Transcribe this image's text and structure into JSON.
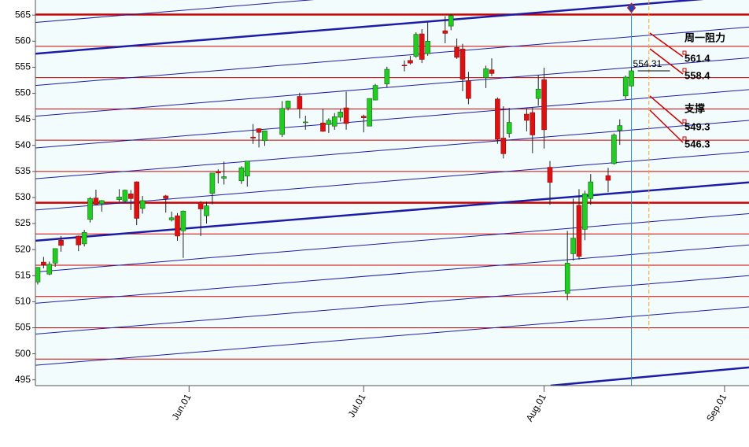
{
  "chart_data": {
    "type": "candlestick",
    "x": [
      0,
      1,
      2,
      3,
      4,
      7,
      8,
      9,
      10,
      11,
      14,
      15,
      16,
      17,
      18,
      22,
      23,
      24,
      25,
      28,
      29,
      30,
      31,
      32,
      35,
      36,
      37,
      38,
      39,
      42,
      43,
      45,
      46,
      49,
      50,
      51,
      52,
      53,
      56,
      57,
      58,
      60,
      63,
      64,
      65,
      66,
      67,
      70,
      71,
      72,
      73,
      74,
      77,
      78,
      79,
      80,
      81,
      84,
      85,
      86,
      87,
      88,
      91,
      92,
      93,
      94,
      95,
      98,
      99,
      100,
      101,
      102
    ],
    "open": [
      513.8,
      517.6,
      515.3,
      517.4,
      521.8,
      522.6,
      521.1,
      525.8,
      529.9,
      528.8,
      529.6,
      529.3,
      530.7,
      533.0,
      527.9,
      530.3,
      525.7,
      526.5,
      523.6,
      529.0,
      526.5,
      530.8,
      535.0,
      533.7,
      533.2,
      534.1,
      541.6,
      543.2,
      540.9,
      542.1,
      547.2,
      549.4,
      544.4,
      544.3,
      544.0,
      543.7,
      545.4,
      547.2,
      545.6,
      543.7,
      548.7,
      551.8,
      555.4,
      556.3,
      557.1,
      561.4,
      557.6,
      562.0,
      562.9,
      558.8,
      558.5,
      552.4,
      553.0,
      554.5,
      548.9,
      541.4,
      542.3,
      546.0,
      546.3,
      549.0,
      552.6,
      535.8,
      511.6,
      519.2,
      528.5,
      523.9,
      529.8,
      534.2,
      536.5,
      542.9,
      549.5,
      551.4
    ],
    "high": [
      516.6,
      518.6,
      517.7,
      520.2,
      522.6,
      522.7,
      523.8,
      530.1,
      531.5,
      529.5,
      531.6,
      531.5,
      531.4,
      533.1,
      530.3,
      530.5,
      527.3,
      527.0,
      527.5,
      529.3,
      529.2,
      534.7,
      535.4,
      536.9,
      536.0,
      537.0,
      544.1,
      543.3,
      542.8,
      548.5,
      548.6,
      550.1,
      545.7,
      547.0,
      545.2,
      546.2,
      547.0,
      550.3,
      545.9,
      549.0,
      551.8,
      555.1,
      556.3,
      557.2,
      561.7,
      562.3,
      563.7,
      564.8,
      565.2,
      560.5,
      559.5,
      554.1,
      555.3,
      556.7,
      549.2,
      547.5,
      547.2,
      547.1,
      547.3,
      553.5,
      554.9,
      537.0,
      523.6,
      529.8,
      531.6,
      531.3,
      534.5,
      535.7,
      542.3,
      545.0,
      553.4,
      555.0
    ],
    "low": [
      513.3,
      516.4,
      515.1,
      516.7,
      519.6,
      519.7,
      520.6,
      525.2,
      528.5,
      527.3,
      529.2,
      529.1,
      527.6,
      524.7,
      526.9,
      527.1,
      525.4,
      521.7,
      518.4,
      522.6,
      525.0,
      528.7,
      532.7,
      532.5,
      532.6,
      532.1,
      540.3,
      539.6,
      539.9,
      541.6,
      546.7,
      545.2,
      543.0,
      542.6,
      542.4,
      543.0,
      544.6,
      543.0,
      542.5,
      543.7,
      548.7,
      551.1,
      554.2,
      555.5,
      556.8,
      555.8,
      557.2,
      559.6,
      562.1,
      556.6,
      550.4,
      547.9,
      551.0,
      553.3,
      540.3,
      537.5,
      541.5,
      542.7,
      538.5,
      547.6,
      539.4,
      528.6,
      510.3,
      517.9,
      518.1,
      521.8,
      528.6,
      531.0,
      536.3,
      540.1,
      548.9,
      551.3
    ],
    "close": [
      516.6,
      517.1,
      517.2,
      520.2,
      520.8,
      520.9,
      523.3,
      529.8,
      528.7,
      529.4,
      530.1,
      531.4,
      529.8,
      526.0,
      529.4,
      529.8,
      526.1,
      522.6,
      527.4,
      527.8,
      528.4,
      534.7,
      534.7,
      534.0,
      535.7,
      537.0,
      541.4,
      542.5,
      542.8,
      547.1,
      548.5,
      547.0,
      544.5,
      542.7,
      544.8,
      545.5,
      546.4,
      544.2,
      545.3,
      549.0,
      551.5,
      554.6,
      555.3,
      555.8,
      561.3,
      556.5,
      560.0,
      561.5,
      564.9,
      556.9,
      552.7,
      549.0,
      554.7,
      553.8,
      541.2,
      538.4,
      544.4,
      544.8,
      542.0,
      550.8,
      543.0,
      532.9,
      517.4,
      522.2,
      518.7,
      530.7,
      533.0,
      533.3,
      542.0,
      543.8,
      553.1,
      554.31
    ],
    "up_color": "#22cc22",
    "down_color": "#dd1111",
    "xlim": [
      -0.4,
      122.2
    ],
    "xticks": [
      {
        "value": 26,
        "label": "Jun.01"
      },
      {
        "value": 56,
        "label": "Jul.01"
      },
      {
        "value": 87,
        "label": "Aug.01"
      },
      {
        "value": 118,
        "label": "Sep.01"
      }
    ],
    "ylim": [
      493.9,
      567.9
    ],
    "yticks": [
      495,
      500,
      505,
      510,
      515,
      520,
      525,
      530,
      535,
      540,
      545,
      550,
      555,
      560,
      565
    ],
    "hlines_major": [
      565.1,
      529.0
    ],
    "hlines_minor": [
      559,
      553,
      547,
      541,
      535,
      523,
      517,
      511,
      505,
      499
    ],
    "hline_color": "#cc0000",
    "trendlines_major": [
      [
        -0.4,
        557.6,
        122.2,
        568.8
      ],
      [
        -0.4,
        521.7,
        122.2,
        532.9
      ],
      [
        88.1,
        493.9,
        122.2,
        497.4
      ]
    ],
    "trendlines_minor": [
      [
        -0.4,
        563.6,
        122.2,
        574.8
      ],
      [
        -0.4,
        551.5,
        122.2,
        562.7
      ],
      [
        -0.4,
        545.6,
        122.2,
        556.8
      ],
      [
        -0.4,
        539.5,
        122.2,
        550.7
      ],
      [
        -0.4,
        533.6,
        122.2,
        544.8
      ],
      [
        -0.4,
        527.6,
        122.2,
        538.8
      ],
      [
        -0.4,
        515.7,
        122.2,
        526.9
      ],
      [
        -0.4,
        509.7,
        122.2,
        520.9
      ],
      [
        -0.4,
        503.8,
        122.2,
        515.0
      ],
      [
        -0.4,
        497.8,
        122.2,
        509.0
      ]
    ],
    "trendline_color": "#1c1ca8",
    "marker_x": 102,
    "projection_x": 105,
    "resistance": {
      "label": "周一阻力",
      "levels": [
        561.4,
        558.4
      ]
    },
    "support": {
      "label": "支撑",
      "levels": [
        549.3,
        546.3
      ]
    }
  }
}
